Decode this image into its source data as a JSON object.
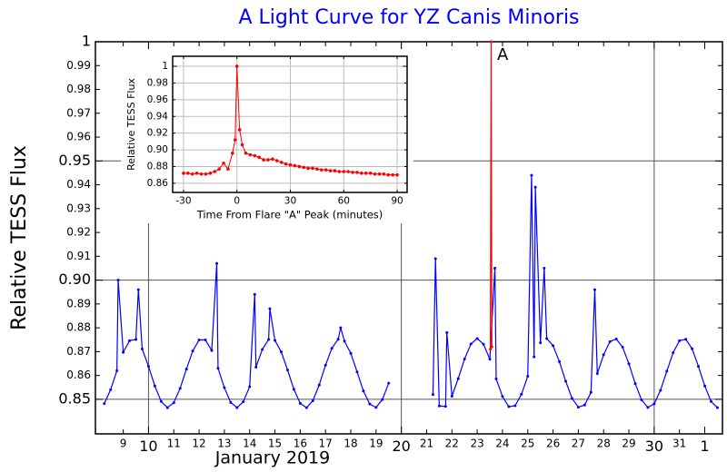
{
  "chart_data": [
    {
      "type": "line",
      "title": "A Light Curve for YZ Canis Minoris",
      "x_label": "January 2019",
      "y_label": "Relative TESS Flux",
      "annotation": "A",
      "grid": true,
      "xlim": [
        7.9,
        32.7
      ],
      "ylim": [
        0.8355,
        1.0
      ],
      "xticks": [
        9,
        10,
        11,
        12,
        13,
        14,
        15,
        16,
        17,
        18,
        19,
        20,
        21,
        22,
        23,
        24,
        25,
        26,
        27,
        28,
        29,
        30,
        31,
        {
          "value": 32,
          "label": "1"
        }
      ],
      "yticks": [
        0.85,
        0.86,
        0.87,
        0.88,
        0.89,
        {
          "value": 0.9,
          "label": "0.90"
        },
        0.91,
        0.92,
        0.93,
        0.94,
        0.95,
        0.96,
        0.97,
        0.98,
        0.99,
        1
      ],
      "series": [
        {
          "color": "#0000ff",
          "x": [
            8.25,
            8.5,
            8.75,
            8.8,
            9.0,
            9.25,
            9.5,
            9.6,
            9.75,
            10.0,
            10.25,
            10.5,
            10.75,
            11.0,
            11.25,
            11.5,
            11.75,
            12.0,
            12.25,
            12.5,
            12.7,
            12.75,
            13.0,
            13.25,
            13.5,
            13.75,
            14.0,
            14.2,
            14.25,
            14.5,
            14.75,
            14.8,
            15.0,
            15.25,
            15.5,
            15.75,
            16.0,
            16.25,
            16.5,
            16.75,
            17.0,
            17.25,
            17.5,
            17.6,
            17.75,
            18.0,
            18.25,
            18.5,
            18.75,
            19.0,
            19.25,
            19.5,
            20.4,
            21.25,
            21.35,
            21.5,
            21.75,
            21.8,
            22.0,
            22.25,
            22.5,
            22.75,
            23.0,
            23.25,
            23.5,
            23.7,
            23.75,
            24.0,
            24.25,
            24.5,
            24.75,
            25.0,
            25.15,
            25.25,
            25.3,
            25.5,
            25.65,
            25.75,
            26.0,
            26.25,
            26.5,
            26.75,
            27.0,
            27.25,
            27.5,
            27.65,
            27.75,
            28.0,
            28.25,
            28.5,
            28.75,
            29.0,
            29.25,
            29.5,
            29.75,
            30.0,
            30.25,
            30.5,
            30.75,
            31.0,
            31.25,
            31.5,
            31.75,
            32.0,
            32.25,
            32.5
          ],
          "values": [
            0.8482,
            0.854,
            0.862,
            0.9,
            0.8697,
            0.8746,
            0.8751,
            0.896,
            0.8711,
            0.8638,
            0.8556,
            0.8491,
            0.8465,
            0.8486,
            0.8546,
            0.8627,
            0.8703,
            0.8749,
            0.8749,
            0.8705,
            0.907,
            0.863,
            0.8549,
            0.8487,
            0.8465,
            0.849,
            0.8553,
            0.894,
            0.8635,
            0.8709,
            0.8751,
            0.888,
            0.8747,
            0.8699,
            0.8623,
            0.8542,
            0.8483,
            0.8465,
            0.8494,
            0.856,
            0.8643,
            0.8714,
            0.8752,
            0.88,
            0.8744,
            0.8693,
            0.8615,
            0.8535,
            0.848,
            0.8466,
            0.8499,
            0.8568,
            null,
            0.852,
            0.909,
            0.8472,
            0.847,
            0.878,
            0.8513,
            0.8587,
            0.8669,
            0.8732,
            0.8755,
            0.8731,
            0.8668,
            0.905,
            0.8586,
            0.8512,
            0.8469,
            0.8473,
            0.8521,
            0.8597,
            0.944,
            0.8678,
            0.939,
            0.8737,
            0.905,
            0.8755,
            0.8725,
            0.8658,
            0.8576,
            0.8504,
            0.8467,
            0.8476,
            0.8529,
            0.896,
            0.8608,
            0.8687,
            0.8742,
            0.8753,
            0.8719,
            0.8649,
            0.8566,
            0.8498,
            0.8466,
            0.8481,
            0.8538,
            0.8618,
            0.8696,
            0.8746,
            0.8752,
            0.8712,
            0.8638,
            0.8556,
            0.8491,
            0.8465
          ]
        },
        {
          "color": "#ff0000",
          "x": [
            23.52,
            23.55,
            23.58
          ],
          "values": [
            0.871,
            1.0,
            0.872
          ]
        }
      ]
    },
    {
      "type": "line",
      "x_label": "Time From Flare \"A\" Peak (minutes)",
      "y_label": "Relative TESS Flux",
      "grid": true,
      "xlim": [
        -36.1,
        95.6
      ],
      "ylim": [
        0.849,
        1.012
      ],
      "xticks": [
        -30,
        0,
        30,
        60,
        90
      ],
      "yticks": [
        0.86,
        0.88,
        {
          "value": 0.9,
          "label": "0.90"
        },
        0.92,
        0.94,
        0.96,
        0.98,
        1
      ],
      "series": [
        {
          "color": "#ff0000",
          "x": [
            -30,
            -27.5,
            -25,
            -22.5,
            -20,
            -17.5,
            -15,
            -12.5,
            -10,
            -7.5,
            -5,
            -2.5,
            -1,
            0,
            1.5,
            3,
            5,
            7.5,
            10,
            12.5,
            15,
            17.5,
            20,
            22.5,
            25,
            27.5,
            30,
            32.5,
            35,
            37.5,
            40,
            42.5,
            45,
            47.5,
            50,
            52.5,
            55,
            57.5,
            60,
            62.5,
            65,
            67.5,
            70,
            72.5,
            75,
            77.5,
            80,
            82.5,
            85,
            87.5,
            90
          ],
          "values": [
            0.872,
            0.872,
            0.871,
            0.872,
            0.871,
            0.871,
            0.872,
            0.874,
            0.877,
            0.884,
            0.877,
            0.896,
            0.912,
            1.0,
            0.924,
            0.906,
            0.896,
            0.894,
            0.893,
            0.891,
            0.888,
            0.888,
            0.889,
            0.887,
            0.885,
            0.883,
            0.882,
            0.881,
            0.88,
            0.879,
            0.878,
            0.878,
            0.877,
            0.876,
            0.876,
            0.875,
            0.875,
            0.874,
            0.874,
            0.874,
            0.873,
            0.873,
            0.872,
            0.872,
            0.872,
            0.871,
            0.871,
            0.871,
            0.87,
            0.87,
            0.87
          ]
        }
      ]
    }
  ]
}
